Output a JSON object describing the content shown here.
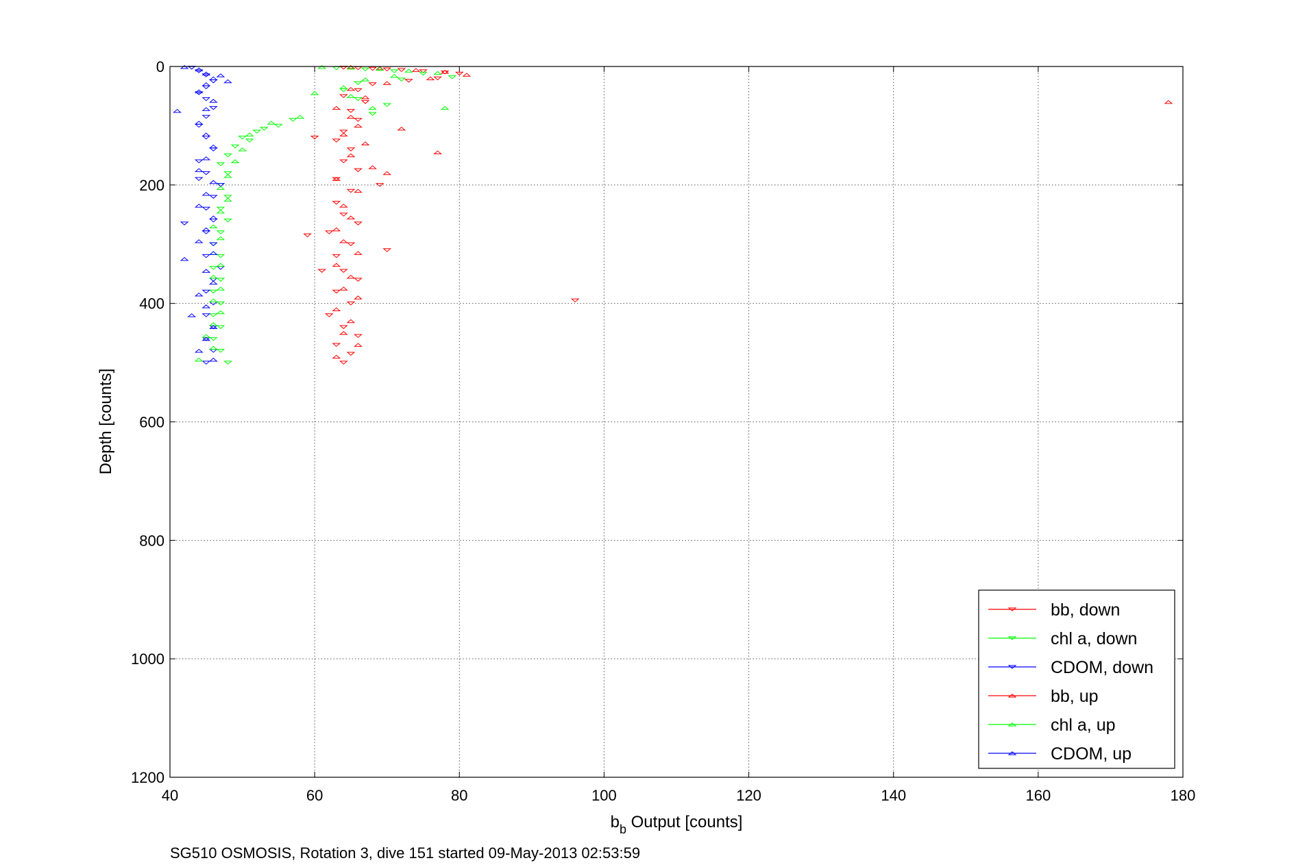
{
  "chart_data": {
    "type": "scatter",
    "xlabel": {
      "main": "b",
      "sub": "b",
      "rest": " Output [counts]"
    },
    "ylabel": "Depth [counts]",
    "caption": "SG510 OSMOSIS, Rotation 3, dive 151 started 09-May-2013 02:53:59",
    "xlim": [
      40,
      180
    ],
    "ylim": [
      0,
      1200
    ],
    "y_reversed": true,
    "xticks": [
      "40",
      "60",
      "80",
      "100",
      "120",
      "140",
      "160",
      "180"
    ],
    "yticks": [
      "0",
      "200",
      "400",
      "600",
      "800",
      "1000",
      "1200"
    ],
    "grid": true,
    "legend_position": "bottom-right",
    "colors": {
      "bb": "#ff0000",
      "chl": "#00ff00",
      "cdom": "#0000ff"
    },
    "series": [
      {
        "name": "bb, down",
        "color": "#ff0000",
        "marker": "triangle-down",
        "points": [
          [
            64,
            2
          ],
          [
            66,
            3
          ],
          [
            68,
            4
          ],
          [
            70,
            5
          ],
          [
            72,
            6
          ],
          [
            75,
            8
          ],
          [
            78,
            10
          ],
          [
            80,
            12
          ],
          [
            77,
            20
          ],
          [
            73,
            24
          ],
          [
            68,
            30
          ],
          [
            66,
            40
          ],
          [
            64,
            50
          ],
          [
            67,
            60
          ],
          [
            65,
            75
          ],
          [
            66,
            90
          ],
          [
            64,
            110
          ],
          [
            63,
            125
          ],
          [
            65,
            140
          ],
          [
            64,
            160
          ],
          [
            66,
            175
          ],
          [
            63,
            190
          ],
          [
            65,
            210
          ],
          [
            63,
            230
          ],
          [
            64,
            250
          ],
          [
            66,
            265
          ],
          [
            62,
            280
          ],
          [
            65,
            300
          ],
          [
            63,
            320
          ],
          [
            64,
            345
          ],
          [
            66,
            360
          ],
          [
            63,
            380
          ],
          [
            65,
            400
          ],
          [
            62,
            420
          ],
          [
            64,
            440
          ],
          [
            66,
            455
          ],
          [
            63,
            470
          ],
          [
            65,
            485
          ],
          [
            64,
            500
          ],
          [
            60,
            120
          ],
          [
            59,
            285
          ],
          [
            61,
            345
          ],
          [
            96,
            395
          ],
          [
            69,
            200
          ],
          [
            70,
            310
          ]
        ]
      },
      {
        "name": "chl a, down",
        "color": "#00ff00",
        "marker": "triangle-down",
        "points": [
          [
            63,
            3
          ],
          [
            67,
            5
          ],
          [
            71,
            8
          ],
          [
            75,
            12
          ],
          [
            79,
            18
          ],
          [
            72,
            22
          ],
          [
            66,
            28
          ],
          [
            64,
            40
          ],
          [
            66,
            55
          ],
          [
            70,
            65
          ],
          [
            68,
            80
          ],
          [
            55,
            100
          ],
          [
            52,
            110
          ],
          [
            50,
            120
          ],
          [
            49,
            135
          ],
          [
            48,
            150
          ],
          [
            47,
            165
          ],
          [
            48,
            180
          ],
          [
            47,
            200
          ],
          [
            48,
            220
          ],
          [
            47,
            240
          ],
          [
            48,
            260
          ],
          [
            47,
            280
          ],
          [
            46,
            300
          ],
          [
            47,
            320
          ],
          [
            46,
            340
          ],
          [
            47,
            360
          ],
          [
            46,
            380
          ],
          [
            47,
            400
          ],
          [
            46,
            420
          ],
          [
            47,
            440
          ],
          [
            46,
            460
          ],
          [
            47,
            480
          ],
          [
            48,
            500
          ],
          [
            57,
            90
          ],
          [
            53,
            105
          ],
          [
            51,
            125
          ]
        ]
      },
      {
        "name": "CDOM, down",
        "color": "#0000ff",
        "marker": "triangle-down",
        "points": [
          [
            43,
            2
          ],
          [
            44,
            8
          ],
          [
            45,
            15
          ],
          [
            46,
            25
          ],
          [
            45,
            35
          ],
          [
            44,
            45
          ],
          [
            45,
            55
          ],
          [
            46,
            70
          ],
          [
            45,
            85
          ],
          [
            44,
            100
          ],
          [
            45,
            120
          ],
          [
            46,
            140
          ],
          [
            44,
            160
          ],
          [
            45,
            180
          ],
          [
            47,
            200
          ],
          [
            46,
            220
          ],
          [
            45,
            240
          ],
          [
            46,
            260
          ],
          [
            45,
            280
          ],
          [
            46,
            300
          ],
          [
            45,
            320
          ],
          [
            47,
            340
          ],
          [
            46,
            360
          ],
          [
            45,
            380
          ],
          [
            46,
            400
          ],
          [
            45,
            420
          ],
          [
            46,
            440
          ],
          [
            45,
            460
          ],
          [
            46,
            480
          ],
          [
            45,
            500
          ],
          [
            42,
            265
          ],
          [
            44,
            190
          ]
        ]
      },
      {
        "name": "bb, up",
        "color": "#ff0000",
        "marker": "triangle-up",
        "points": [
          [
            65,
            1
          ],
          [
            69,
            3
          ],
          [
            74,
            6
          ],
          [
            78,
            9
          ],
          [
            81,
            14
          ],
          [
            76,
            20
          ],
          [
            70,
            28
          ],
          [
            65,
            38
          ],
          [
            67,
            52
          ],
          [
            63,
            70
          ],
          [
            65,
            85
          ],
          [
            66,
            100
          ],
          [
            64,
            115
          ],
          [
            67,
            130
          ],
          [
            65,
            150
          ],
          [
            68,
            170
          ],
          [
            63,
            190
          ],
          [
            66,
            210
          ],
          [
            64,
            235
          ],
          [
            65,
            255
          ],
          [
            63,
            275
          ],
          [
            64,
            295
          ],
          [
            66,
            315
          ],
          [
            63,
            335
          ],
          [
            65,
            355
          ],
          [
            64,
            375
          ],
          [
            66,
            390
          ],
          [
            63,
            410
          ],
          [
            65,
            430
          ],
          [
            64,
            450
          ],
          [
            66,
            470
          ],
          [
            63,
            490
          ],
          [
            178,
            60
          ],
          [
            77,
            145
          ],
          [
            72,
            105
          ],
          [
            70,
            180
          ]
        ]
      },
      {
        "name": "chl a, up",
        "color": "#00ff00",
        "marker": "triangle-up",
        "points": [
          [
            61,
            1
          ],
          [
            65,
            2
          ],
          [
            69,
            4
          ],
          [
            73,
            7
          ],
          [
            77,
            11
          ],
          [
            71,
            16
          ],
          [
            67,
            22
          ],
          [
            64,
            35
          ],
          [
            65,
            50
          ],
          [
            68,
            70
          ],
          [
            58,
            85
          ],
          [
            54,
            95
          ],
          [
            51,
            115
          ],
          [
            50,
            140
          ],
          [
            49,
            160
          ],
          [
            48,
            185
          ],
          [
            47,
            205
          ],
          [
            48,
            225
          ],
          [
            47,
            245
          ],
          [
            46,
            270
          ],
          [
            47,
            290
          ],
          [
            46,
            315
          ],
          [
            47,
            335
          ],
          [
            46,
            355
          ],
          [
            47,
            375
          ],
          [
            46,
            395
          ],
          [
            47,
            415
          ],
          [
            46,
            435
          ],
          [
            45,
            455
          ],
          [
            46,
            475
          ],
          [
            44,
            495
          ],
          [
            78,
            70
          ],
          [
            60,
            45
          ]
        ]
      },
      {
        "name": "CDOM, up",
        "color": "#0000ff",
        "marker": "triangle-up",
        "points": [
          [
            42,
            1
          ],
          [
            44,
            5
          ],
          [
            45,
            12
          ],
          [
            46,
            20
          ],
          [
            45,
            30
          ],
          [
            44,
            42
          ],
          [
            46,
            58
          ],
          [
            45,
            72
          ],
          [
            41,
            75
          ],
          [
            44,
            95
          ],
          [
            45,
            115
          ],
          [
            46,
            135
          ],
          [
            45,
            155
          ],
          [
            44,
            175
          ],
          [
            46,
            195
          ],
          [
            45,
            215
          ],
          [
            44,
            235
          ],
          [
            46,
            255
          ],
          [
            45,
            275
          ],
          [
            44,
            295
          ],
          [
            46,
            315
          ],
          [
            42,
            325
          ],
          [
            45,
            345
          ],
          [
            46,
            365
          ],
          [
            44,
            385
          ],
          [
            45,
            405
          ],
          [
            43,
            420
          ],
          [
            46,
            440
          ],
          [
            45,
            460
          ],
          [
            44,
            480
          ],
          [
            46,
            495
          ],
          [
            47,
            15
          ],
          [
            48,
            25
          ]
        ]
      }
    ]
  }
}
